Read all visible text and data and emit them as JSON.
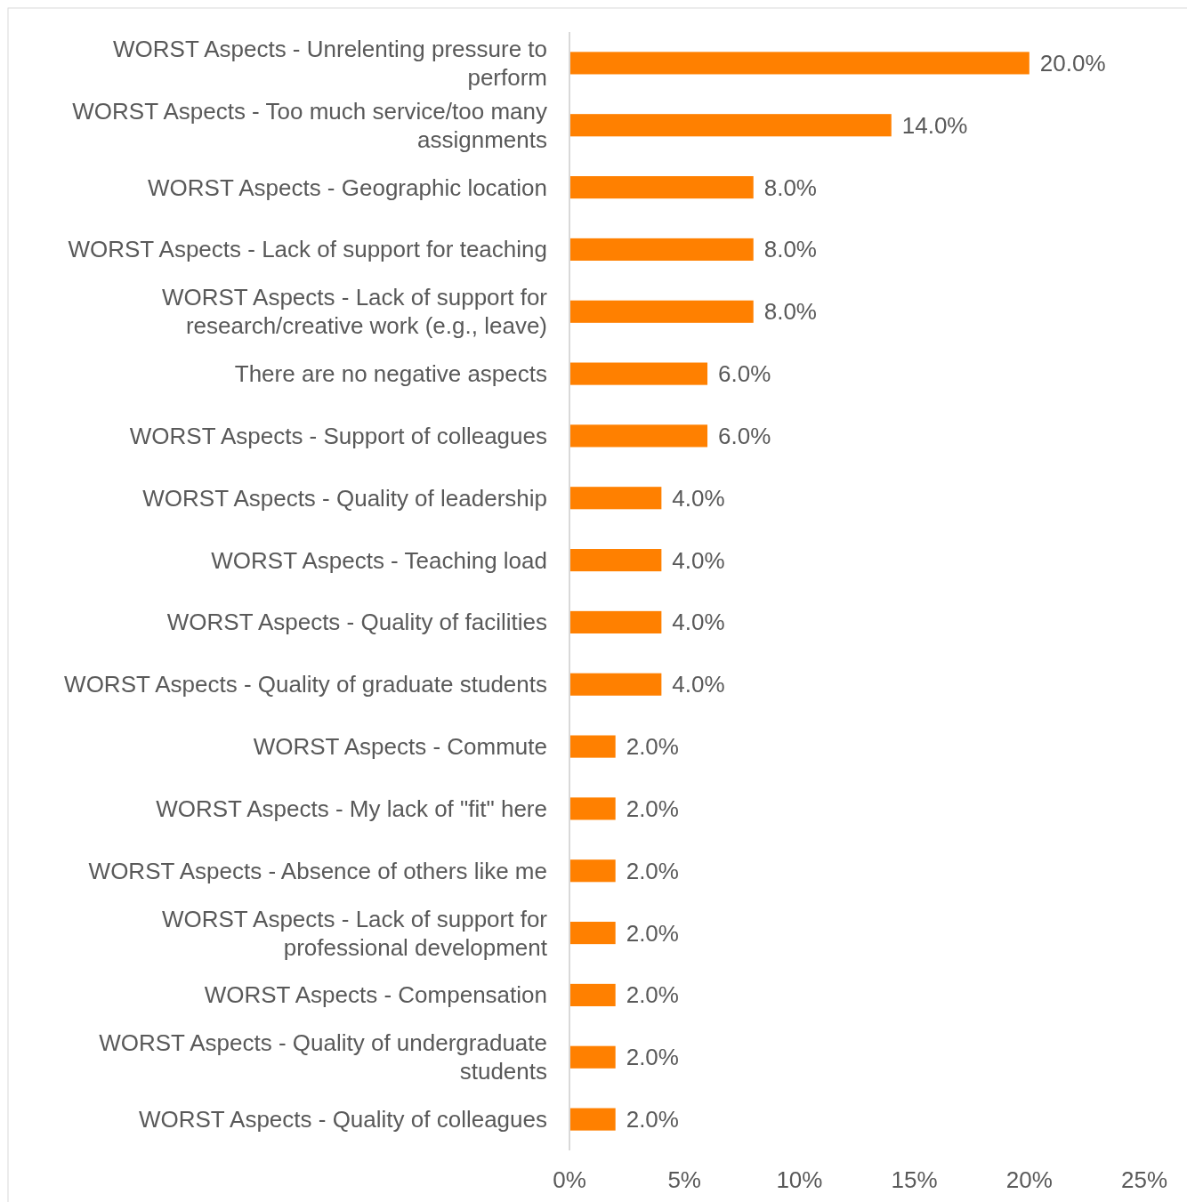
{
  "chart_data": {
    "type": "bar",
    "orientation": "horizontal",
    "categories": [
      "WORST Aspects - Unrelenting pressure to perform",
      "WORST Aspects - Too much service/too many assignments",
      "WORST Aspects - Geographic location",
      "WORST Aspects - Lack of support for teaching",
      "WORST Aspects - Lack of support for research/creative work (e.g., leave)",
      "There are no negative aspects",
      "WORST Aspects - Support of colleagues",
      "WORST Aspects - Quality of leadership",
      "WORST Aspects - Teaching load",
      "WORST Aspects - Quality of facilities",
      "WORST Aspects - Quality of graduate students",
      "WORST Aspects - Commute",
      "WORST Aspects - My lack of \"fit\" here",
      "WORST Aspects - Absence of others like me",
      "WORST Aspects - Lack of support for professional development",
      "WORST Aspects - Compensation",
      "WORST Aspects - Quality of undergraduate students",
      "WORST Aspects - Quality of colleagues"
    ],
    "values": [
      20,
      14,
      8,
      8,
      8,
      6,
      6,
      4,
      4,
      4,
      4,
      2,
      2,
      2,
      2,
      2,
      2,
      2
    ],
    "value_labels": [
      "20.0%",
      "14.0%",
      "8.0%",
      "8.0%",
      "8.0%",
      "6.0%",
      "6.0%",
      "4.0%",
      "4.0%",
      "4.0%",
      "4.0%",
      "2.0%",
      "2.0%",
      "2.0%",
      "2.0%",
      "2.0%",
      "2.0%",
      "2.0%"
    ],
    "color": "#ff8000",
    "xlim": [
      0,
      25
    ],
    "xticks": [
      {
        "value": 0,
        "label": "0%"
      },
      {
        "value": 5,
        "label": "5%"
      },
      {
        "value": 10,
        "label": "10%"
      },
      {
        "value": 15,
        "label": "15%"
      },
      {
        "value": 20,
        "label": "20%"
      },
      {
        "value": 25,
        "label": "25%"
      }
    ],
    "grid": false
  }
}
